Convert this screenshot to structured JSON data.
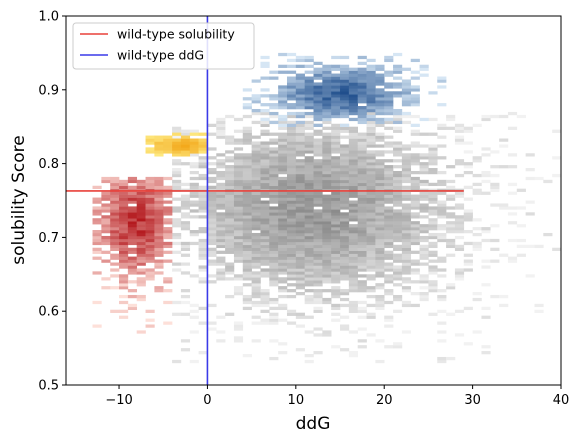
{
  "chart_data": {
    "type": "heatmap",
    "xlabel": "ddG",
    "ylabel": "solubility Score",
    "xlim": [
      -16,
      40
    ],
    "ylim": [
      0.5,
      1.0
    ],
    "xticks": [
      -10,
      0,
      10,
      20,
      30,
      40
    ],
    "yticks": [
      0.5,
      0.6,
      0.7,
      0.8,
      0.9,
      1.0
    ],
    "xtick_labels": [
      "−10",
      "0",
      "10",
      "20",
      "30",
      "40"
    ],
    "ytick_labels": [
      "0.5",
      "0.6",
      "0.7",
      "0.8",
      "0.9",
      "1.0"
    ],
    "grid": false,
    "legend": {
      "placement": "top-left",
      "entries": [
        {
          "label": "wild-type solubility",
          "color": "#e8413a"
        },
        {
          "label": "wild-type ddG",
          "color": "#3a3ae8"
        }
      ]
    },
    "reference_lines": {
      "wild_type_solubility": {
        "y": 0.763,
        "x_from": -16,
        "x_to": 29,
        "color": "#e8413a"
      },
      "wild_type_ddG": {
        "x": 0,
        "color": "#3a3ae8"
      }
    },
    "density_regions": [
      {
        "name": "grey",
        "color_low": "#f2f2f2",
        "color_high": "#8a8a8a",
        "x_range": [
          -4,
          40
        ],
        "y_range": [
          0.53,
          0.87
        ],
        "center": [
          12,
          0.74
        ],
        "spread": [
          10,
          0.08
        ]
      },
      {
        "name": "blue",
        "color_low": "#d6e6f4",
        "color_high": "#1f4e8c",
        "x_range": [
          4,
          27
        ],
        "y_range": [
          0.85,
          0.95
        ],
        "center": [
          15,
          0.895
        ],
        "spread": [
          5,
          0.025
        ]
      },
      {
        "name": "yellow",
        "color_low": "#ffef8a",
        "color_high": "#f2a516",
        "x_range": [
          -7,
          0
        ],
        "y_range": [
          0.81,
          0.84
        ],
        "center": [
          -3,
          0.825
        ],
        "spread": [
          2.5,
          0.01
        ]
      },
      {
        "name": "red",
        "color_low": "#fde0d9",
        "color_high": "#b3171c",
        "x_range": [
          -13,
          -4
        ],
        "y_range": [
          0.57,
          0.78
        ],
        "center": [
          -8,
          0.72
        ],
        "spread": [
          3,
          0.05
        ]
      }
    ]
  }
}
